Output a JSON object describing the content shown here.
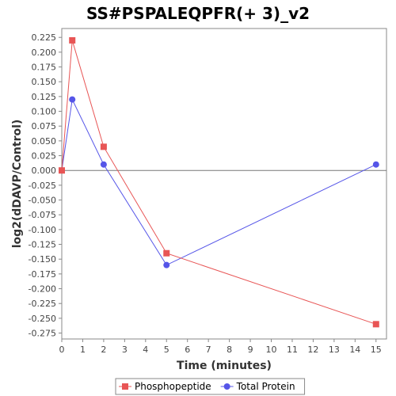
{
  "chart_data": {
    "type": "line",
    "title": "SS#PSPALEQPFR(+ 3)_v2",
    "xlabel": "Time (minutes)",
    "ylabel": "log2(dDAVP/Control)",
    "xlim": [
      0,
      15.5
    ],
    "ylim": [
      -0.285,
      0.24
    ],
    "x_ticks": [
      0,
      1,
      2,
      3,
      4,
      5,
      6,
      7,
      8,
      9,
      10,
      11,
      12,
      13,
      14,
      15
    ],
    "y_ticks": [
      0.225,
      0.2,
      0.175,
      0.15,
      0.125,
      0.1,
      0.075,
      0.05,
      0.025,
      0.0,
      -0.025,
      -0.05,
      -0.075,
      -0.1,
      -0.125,
      -0.15,
      -0.175,
      -0.2,
      -0.225,
      -0.25,
      -0.275
    ],
    "y_tick_labels": [
      "0.225",
      "0.200",
      "0.175",
      "0.150",
      "0.125",
      "0.100",
      "0.075",
      "0.050",
      "0.025",
      "0.000",
      "-0.025",
      "-0.050",
      "-0.075",
      "-0.100",
      "-0.125",
      "-0.150",
      "-0.175",
      "-0.200",
      "-0.225",
      "-0.250",
      "-0.275"
    ],
    "zero_line": true,
    "grid": false,
    "legend_position": "bottom",
    "series": [
      {
        "name": "Phosphopeptide",
        "color": "#e85555",
        "marker": "square",
        "x": [
          0,
          0.5,
          2,
          5,
          15
        ],
        "y": [
          0.0,
          0.22,
          0.04,
          -0.14,
          -0.26
        ]
      },
      {
        "name": "Total Protein",
        "color": "#5555e8",
        "marker": "circle",
        "x": [
          0,
          0.5,
          2,
          5,
          15
        ],
        "y": [
          0.0,
          0.12,
          0.01,
          -0.16,
          0.01
        ]
      }
    ]
  }
}
